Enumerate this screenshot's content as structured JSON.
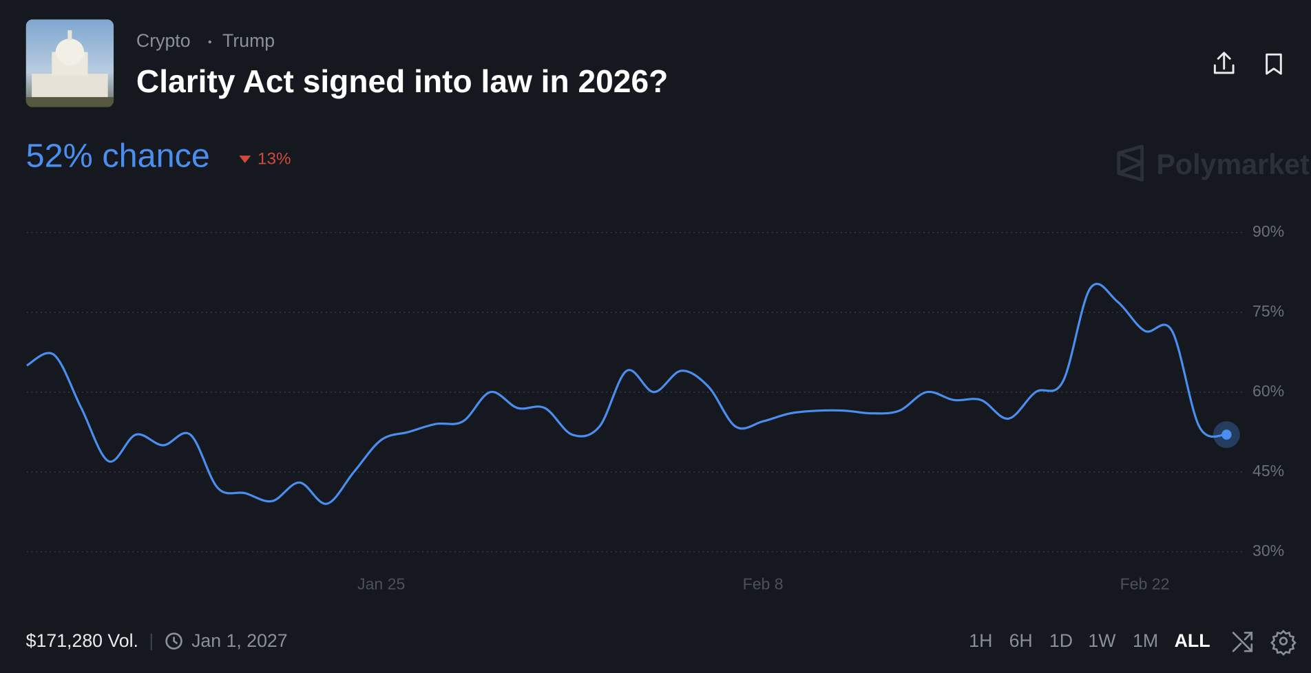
{
  "header": {
    "category": "Crypto",
    "tag": "Trump",
    "title": "Clarity Act signed into law in 2026?",
    "chance": "52% chance",
    "change": "13%",
    "brand": "Polymarket"
  },
  "chart_data": {
    "type": "line",
    "x": [
      "Jan 12",
      "Jan 13",
      "Jan 14",
      "Jan 15",
      "Jan 16",
      "Jan 17",
      "Jan 18",
      "Jan 19",
      "Jan 20",
      "Jan 21",
      "Jan 22",
      "Jan 23",
      "Jan 24",
      "Jan 25",
      "Jan 26",
      "Jan 27",
      "Jan 28",
      "Jan 29",
      "Jan 30",
      "Jan 31",
      "Feb 1",
      "Feb 2",
      "Feb 3",
      "Feb 4",
      "Feb 5",
      "Feb 6",
      "Feb 7",
      "Feb 8",
      "Feb 9",
      "Feb 10",
      "Feb 11",
      "Feb 12",
      "Feb 13",
      "Feb 14",
      "Feb 15",
      "Feb 16",
      "Feb 17",
      "Feb 18",
      "Feb 19",
      "Feb 20",
      "Feb 21",
      "Feb 22",
      "Feb 23",
      "Feb 24",
      "Feb 25"
    ],
    "series": [
      {
        "name": "Yes",
        "color": "#4a8ff0",
        "values": [
          65,
          67,
          57,
          47,
          52,
          50,
          52,
          42,
          41,
          39.5,
          43,
          39,
          45,
          51,
          52.5,
          54,
          54.5,
          60,
          57,
          57,
          52,
          53.5,
          64,
          60,
          64,
          61,
          53.5,
          54.5,
          56,
          56.5,
          56.5,
          56,
          56.5,
          60,
          58.5,
          58.5,
          55,
          60,
          62,
          79.5,
          77,
          71.5,
          71.5,
          53.5,
          52
        ]
      }
    ],
    "ylim": [
      30,
      90
    ],
    "yticks": [
      {
        "value": 30,
        "label": "30%"
      },
      {
        "value": 45,
        "label": "45%"
      },
      {
        "value": 60,
        "label": "60%"
      },
      {
        "value": 75,
        "label": "75%"
      },
      {
        "value": 90,
        "label": "90%"
      }
    ],
    "xticks": [
      "Jan 25",
      "Feb 8",
      "Feb 22"
    ],
    "grid": true
  },
  "footer": {
    "volume": "$171,280 Vol.",
    "end_date": "Jan 1, 2027",
    "ranges": [
      "1H",
      "6H",
      "1D",
      "1W",
      "1M",
      "ALL"
    ],
    "active_range": "ALL"
  }
}
